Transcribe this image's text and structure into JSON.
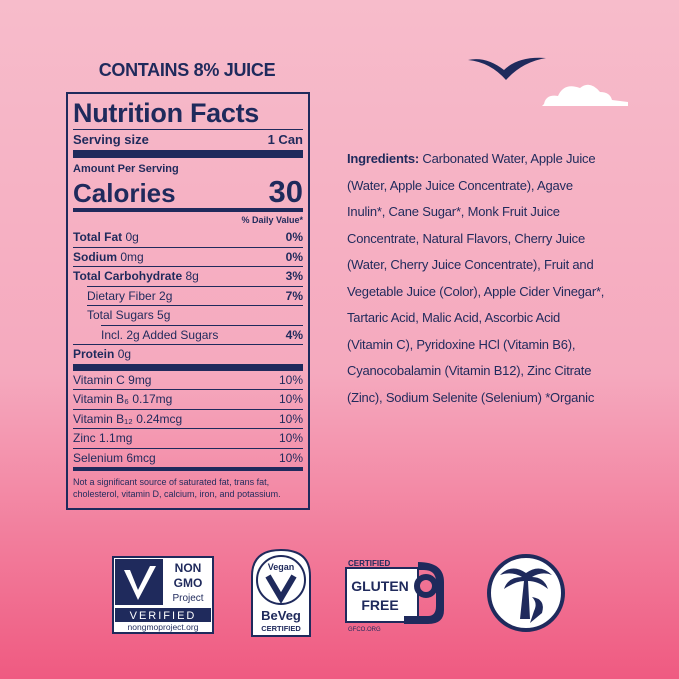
{
  "header": {
    "juice": "CONTAINS 8% JUICE"
  },
  "nutrition": {
    "title": "Nutrition Facts",
    "serving_label": "Serving size",
    "serving_size": "1 Can",
    "amount_per_serving": "Amount Per Serving",
    "calories_label": "Calories",
    "calories": 30,
    "dv_header": "% Daily Value*",
    "nutrients": [
      {
        "name": "Total Fat",
        "amount": "0g",
        "dv": "0%"
      },
      {
        "name": "Sodium",
        "amount": "0mg",
        "dv": "0%"
      },
      {
        "name": "Total Carbohydrate",
        "amount": "8g",
        "dv": "3%",
        "sub": [
          {
            "name": "Dietary Fiber",
            "amount": "2g",
            "dv": "7%"
          },
          {
            "name": "Total Sugars",
            "amount": "5g",
            "sub": [
              {
                "name": "Incl. 2g Added Sugars",
                "dv": "4%"
              }
            ]
          }
        ]
      },
      {
        "name": "Protein",
        "amount": "0g"
      }
    ],
    "vitamins": [
      {
        "name": "Vitamin C",
        "amount": "9mg",
        "dv": "10%"
      },
      {
        "name": "Vitamin B₆",
        "amount": "0.17mg",
        "dv": "10%"
      },
      {
        "name": "Vitamin B₁₂",
        "amount": "0.24mcg",
        "dv": "10%"
      },
      {
        "name": "Zinc",
        "amount": "1.1mg",
        "dv": "10%"
      },
      {
        "name": "Selenium",
        "amount": "6mcg",
        "dv": "10%"
      }
    ],
    "footnote": "Not a significant source of saturated fat, trans fat, cholesterol, vitamin D, calcium, iron, and potassium."
  },
  "ingredients": {
    "label": "Ingredients:",
    "text": "Carbonated Water, Apple Juice (Water, Apple Juice Concentrate), Agave Inulin*, Cane Sugar*, Monk Fruit Juice Concentrate, Natural Flavors, Cherry Juice (Water, Cherry Juice Concentrate), Fruit and Vegetable Juice (Color), Apple Cider Vinegar*, Tartaric Acid, Malic Acid, Ascorbic Acid (Vitamin C), Pyridoxine HCl (Vitamin B6), Cyanocobalamin (Vitamin B12), Zinc Citrate (Zinc), Sodium Selenite (Selenium)  *Organic"
  },
  "badges": {
    "non_gmo": {
      "non": "NON",
      "gmo": "GMO",
      "project": "Project",
      "verified": "VERIFIED",
      "url": "nongmoproject.org"
    },
    "vegan": {
      "vegan": "Vegan",
      "beveg": "BeVeg",
      "certified": "CERTIFIED"
    },
    "gluten_free": {
      "certified": "CERTIFIED",
      "gluten": "GLUTEN",
      "free": "FREE",
      "url": "GFCO.ORG"
    }
  }
}
